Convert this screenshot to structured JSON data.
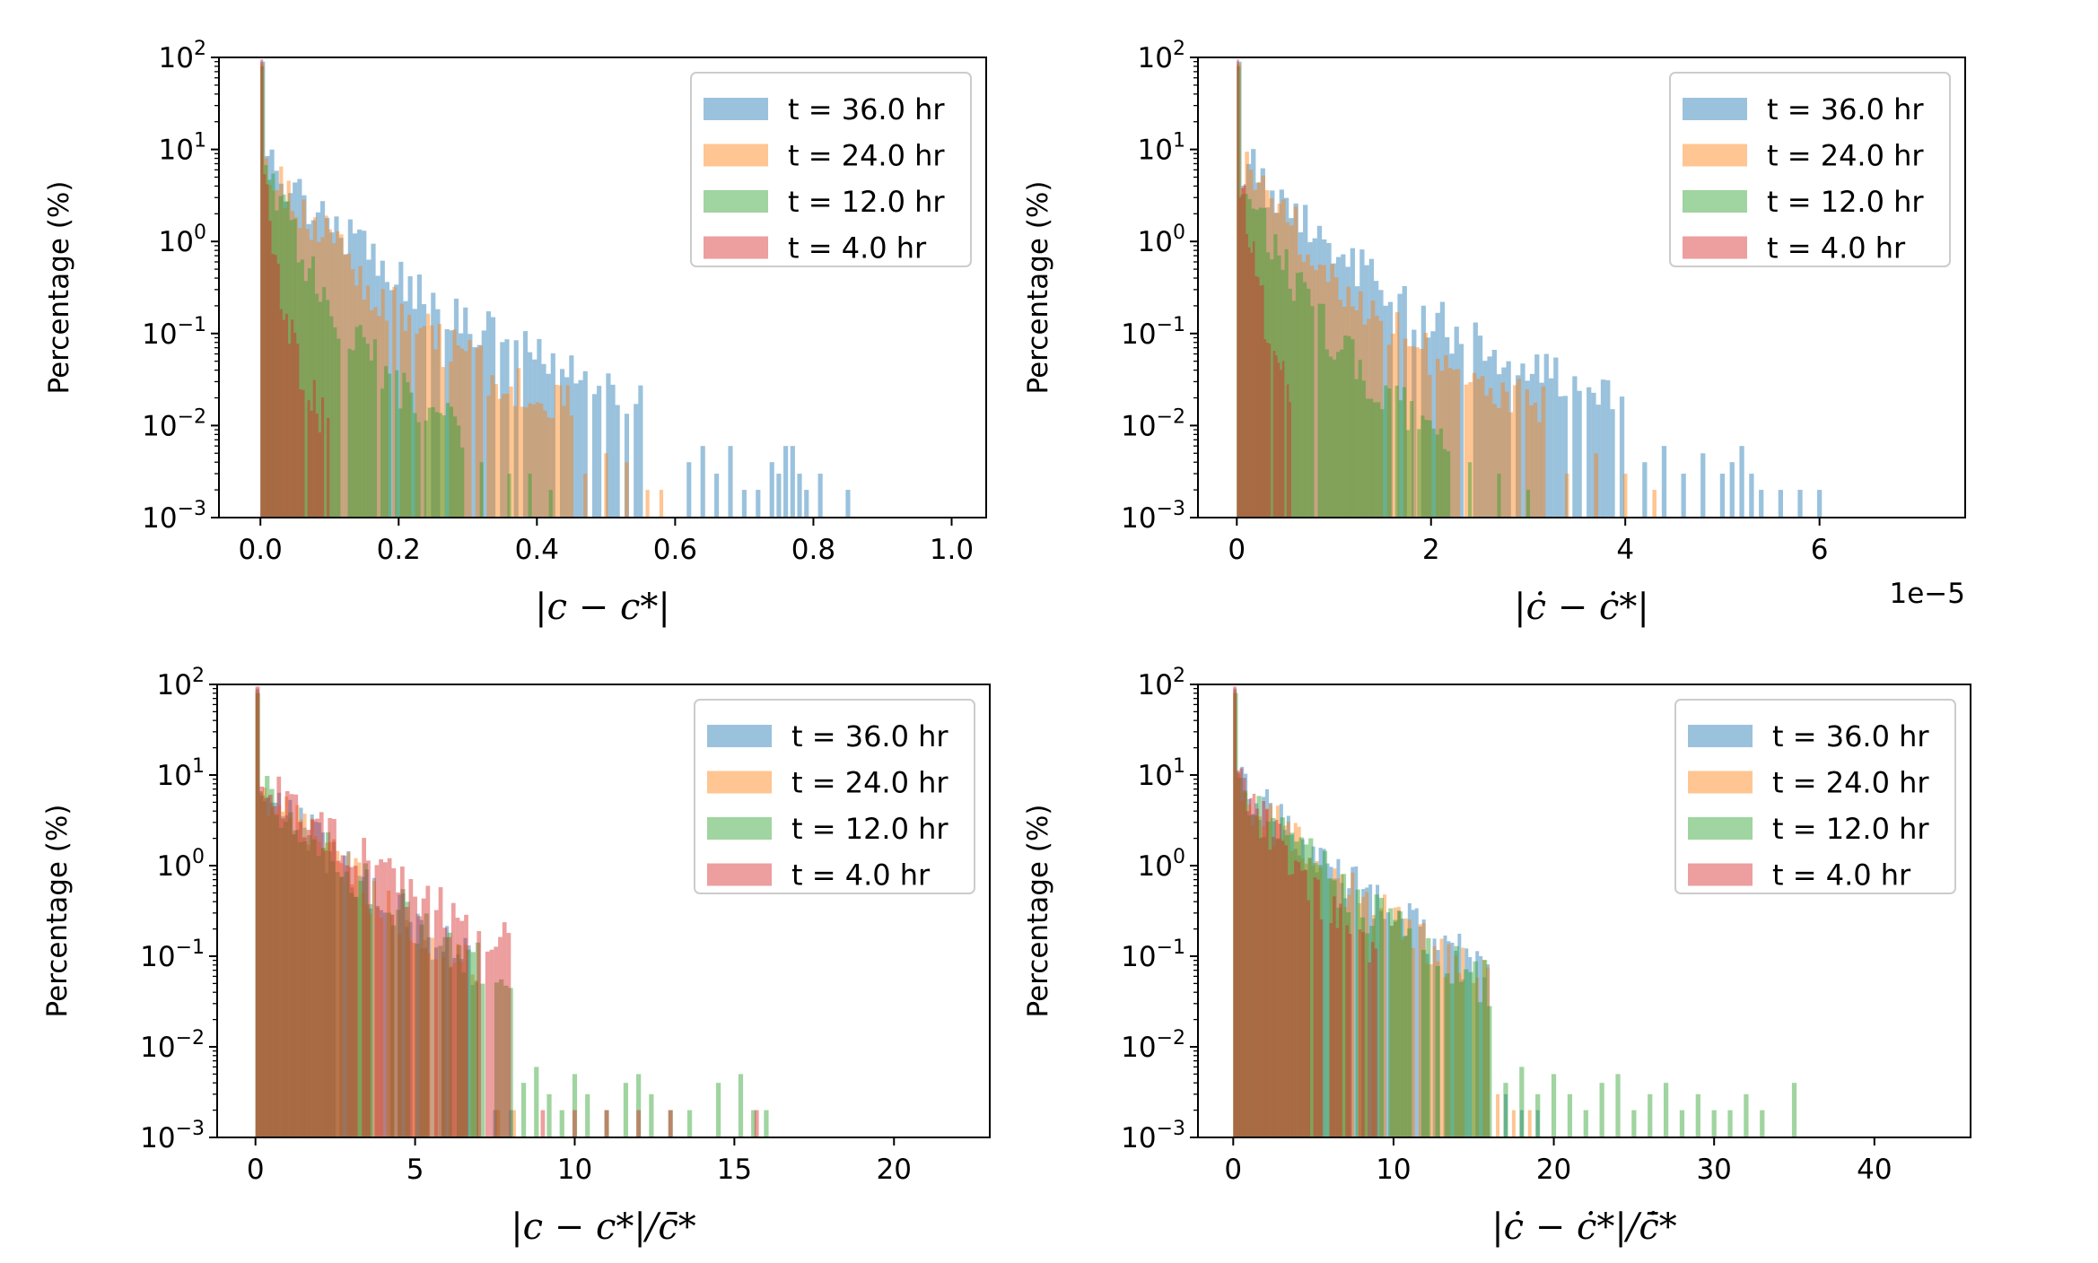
{
  "figure": {
    "colors": {
      "t36": "#1f77b4",
      "t24": "#ff7f0e",
      "t12": "#2ca02c",
      "t4": "#d62728"
    },
    "bar_alpha": 0.45
  },
  "chart_data": [
    {
      "id": "a",
      "type": "bar",
      "yscale": "log",
      "ylabel": "Percentage (%)",
      "xlabel": "|c − c*|",
      "xlim": [
        -0.06,
        1.05
      ],
      "ylim": [
        0.001,
        100
      ],
      "offset_text": "",
      "xticks": [
        0,
        0.2,
        0.4,
        0.6,
        0.8,
        1.0
      ],
      "xtick_labels": [
        "0.0",
        "0.2",
        "0.4",
        "0.6",
        "0.8",
        "1.0"
      ],
      "yticks": [
        0.001,
        0.01,
        0.1,
        1,
        10,
        100
      ],
      "legend": [
        "t = 36.0 hr",
        "t = 24.0 hr",
        "t = 12.0 hr",
        "t = 4.0 hr"
      ],
      "series": [
        {
          "name": "t = 36.0 hr",
          "color": "t36",
          "xmax": 1.0,
          "bins": 150,
          "peak": 90,
          "decay": 0.06,
          "floor_at": 0.55,
          "tail_x": [
            0.62,
            0.64,
            0.66,
            0.68,
            0.7,
            0.72,
            0.74,
            0.75,
            0.76,
            0.77,
            0.78,
            0.79,
            0.81,
            0.85,
            0.87,
            0.89,
            0.93,
            0.96,
            0.98,
            1.0
          ],
          "tail_v": [
            0.004,
            0.006,
            0.003,
            0.006,
            0.002,
            0.002,
            0.004,
            0.003,
            0.006,
            0.006,
            0.003,
            0.002,
            0.003,
            0.002,
            0.001,
            0.001,
            0.001,
            0.001,
            0.001,
            0.001
          ]
        },
        {
          "name": "t = 24.0 hr",
          "color": "t24",
          "xmax": 0.6,
          "bins": 110,
          "peak": 85,
          "decay": 0.045,
          "floor_at": 0.45,
          "tail_x": [
            0.47,
            0.5,
            0.53,
            0.56,
            0.58
          ],
          "tail_v": [
            0.003,
            0.005,
            0.004,
            0.002,
            0.002
          ]
        },
        {
          "name": "t = 12.0 hr",
          "color": "t12",
          "xmax": 0.5,
          "bins": 95,
          "peak": 80,
          "decay": 0.025,
          "floor_at": 0.3,
          "tail_x": [
            0.32,
            0.36,
            0.39,
            0.42,
            0.45,
            0.48
          ],
          "tail_v": [
            0.004,
            0.003,
            0.003,
            0.002,
            0.001,
            0.001
          ]
        },
        {
          "name": "t = 4.0 hr",
          "color": "t4",
          "xmax": 0.12,
          "bins": 30,
          "peak": 95,
          "decay": 0.008,
          "floor_at": 0.1,
          "tail_x": [],
          "tail_v": []
        }
      ]
    },
    {
      "id": "b",
      "type": "bar",
      "yscale": "log",
      "ylabel": "Percentage (%)",
      "xlabel": "|ċ − ċ*|",
      "xlim": [
        -0.4,
        7.5
      ],
      "ylim": [
        0.001,
        100
      ],
      "offset_text": "1e−5",
      "xticks": [
        0,
        2,
        4,
        6
      ],
      "xtick_labels": [
        "0",
        "2",
        "4",
        "6"
      ],
      "yticks": [
        0.001,
        0.01,
        0.1,
        1,
        10,
        100
      ],
      "legend": [
        "t = 36.0 hr",
        "t = 24.0 hr",
        "t = 12.0 hr",
        "t = 4.0 hr"
      ],
      "series": [
        {
          "name": "t = 36.0 hr",
          "color": "t36",
          "xmax": 7.3,
          "bins": 150,
          "peak": 90,
          "decay": 0.42,
          "floor_at": 4.0,
          "tail_x": [
            4.2,
            4.4,
            4.6,
            4.8,
            5.0,
            5.1,
            5.2,
            5.3,
            5.4,
            5.6,
            5.8,
            6.0,
            6.2,
            6.4,
            6.7,
            7.2
          ],
          "tail_v": [
            0.004,
            0.006,
            0.003,
            0.005,
            0.003,
            0.004,
            0.006,
            0.003,
            0.002,
            0.002,
            0.002,
            0.002,
            0.001,
            0.001,
            0.001,
            0.001
          ]
        },
        {
          "name": "t = 24.0 hr",
          "color": "t24",
          "xmax": 4.6,
          "bins": 110,
          "peak": 85,
          "decay": 0.32,
          "floor_at": 3.2,
          "tail_x": [
            3.4,
            3.7,
            4.0,
            4.3
          ],
          "tail_v": [
            0.003,
            0.005,
            0.003,
            0.002
          ]
        },
        {
          "name": "t = 12.0 hr",
          "color": "t12",
          "xmax": 3.6,
          "bins": 95,
          "peak": 80,
          "decay": 0.18,
          "floor_at": 2.2,
          "tail_x": [
            2.4,
            2.7,
            3.0,
            3.3
          ],
          "tail_v": [
            0.004,
            0.003,
            0.002,
            0.001
          ]
        },
        {
          "name": "t = 4.0 hr",
          "color": "t4",
          "xmax": 0.7,
          "bins": 30,
          "peak": 95,
          "decay": 0.06,
          "floor_at": 0.6,
          "tail_x": [],
          "tail_v": []
        }
      ]
    },
    {
      "id": "c",
      "type": "bar",
      "yscale": "log",
      "ylabel": "Percentage (%)",
      "xlabel": "|c − c*|/c̄*",
      "xlim": [
        -1.2,
        23.0
      ],
      "ylim": [
        0.001,
        100
      ],
      "offset_text": "",
      "xticks": [
        0,
        5,
        10,
        15,
        20
      ],
      "xtick_labels": [
        "0",
        "5",
        "10",
        "15",
        "20"
      ],
      "yticks": [
        0.001,
        0.01,
        0.1,
        1,
        10,
        100
      ],
      "legend": [
        "t = 36.0 hr",
        "t = 24.0 hr",
        "t = 12.0 hr",
        "t = 4.0 hr"
      ],
      "series": [
        {
          "name": "t = 36.0 hr",
          "color": "t36",
          "xmax": 8.0,
          "bins": 70,
          "peak": 90,
          "decay": 1.2,
          "floor_at": 7.0,
          "tail_x": [
            7.5,
            8.0
          ],
          "tail_v": [
            0.002,
            0.002
          ]
        },
        {
          "name": "t = 24.0 hr",
          "color": "t24",
          "xmax": 8.0,
          "bins": 70,
          "peak": 85,
          "decay": 1.2,
          "floor_at": 7.0,
          "tail_x": [
            7.6,
            8.1
          ],
          "tail_v": [
            0.002,
            0.002
          ]
        },
        {
          "name": "t = 12.0 hr",
          "color": "t12",
          "xmax": 22.0,
          "bins": 150,
          "peak": 80,
          "decay": 1.3,
          "floor_at": 8.0,
          "tail_x": [
            8.4,
            8.8,
            9.2,
            9.6,
            10.0,
            10.4,
            11.0,
            11.6,
            12.0,
            12.4,
            13.0,
            13.6,
            14.5,
            15.2,
            15.6,
            16.0,
            17.0,
            18.5,
            19.0,
            22.0
          ],
          "tail_v": [
            0.004,
            0.006,
            0.003,
            0.002,
            0.005,
            0.003,
            0.002,
            0.004,
            0.005,
            0.003,
            0.002,
            0.002,
            0.004,
            0.005,
            0.002,
            0.002,
            0.001,
            0.001,
            0.001,
            0.001
          ]
        },
        {
          "name": "t = 4.0 hr",
          "color": "t4",
          "xmax": 16.0,
          "bins": 120,
          "peak": 95,
          "decay": 1.55,
          "floor_at": 8.0,
          "tail_x": [
            9.0,
            10.0,
            11.0,
            12.0,
            13.0,
            15.7
          ],
          "tail_v": [
            0.002,
            0.002,
            0.002,
            0.002,
            0.002,
            0.002
          ]
        }
      ]
    },
    {
      "id": "d",
      "type": "bar",
      "yscale": "log",
      "ylabel": "Percentage (%)",
      "xlabel": "|ċ − ċ*|/c̄̇*",
      "xlim": [
        -2.2,
        46.0
      ],
      "ylim": [
        0.001,
        100
      ],
      "offset_text": "",
      "xticks": [
        0,
        10,
        20,
        30,
        40
      ],
      "xtick_labels": [
        "0",
        "10",
        "20",
        "30",
        "40"
      ],
      "yticks": [
        0.001,
        0.01,
        0.1,
        1,
        10,
        100
      ],
      "legend": [
        "t = 36.0 hr",
        "t = 24.0 hr",
        "t = 12.0 hr",
        "t = 4.0 hr"
      ],
      "series": [
        {
          "name": "t = 36.0 hr",
          "color": "t36",
          "xmax": 20.0,
          "bins": 90,
          "peak": 90,
          "decay": 2.6,
          "floor_at": 16.0,
          "tail_x": [
            17.0,
            18.0,
            19.0
          ],
          "tail_v": [
            0.003,
            0.002,
            0.002
          ]
        },
        {
          "name": "t = 24.0 hr",
          "color": "t24",
          "xmax": 20.0,
          "bins": 90,
          "peak": 85,
          "decay": 2.5,
          "floor_at": 16.0,
          "tail_x": [
            16.5,
            17.5,
            18.5
          ],
          "tail_v": [
            0.003,
            0.002,
            0.002
          ]
        },
        {
          "name": "t = 12.0 hr",
          "color": "t12",
          "xmax": 44.0,
          "bins": 150,
          "peak": 80,
          "decay": 2.4,
          "floor_at": 16.0,
          "tail_x": [
            17.0,
            18.0,
            19.0,
            20.0,
            21.0,
            22.0,
            23.0,
            24.0,
            25.0,
            26.0,
            27.0,
            28.0,
            29.0,
            30.0,
            31.0,
            32.0,
            33.0,
            35.0,
            40.0,
            43.5
          ],
          "tail_v": [
            0.004,
            0.006,
            0.003,
            0.005,
            0.003,
            0.002,
            0.004,
            0.005,
            0.002,
            0.003,
            0.004,
            0.002,
            0.003,
            0.002,
            0.002,
            0.003,
            0.002,
            0.004,
            0.001,
            0.001
          ]
        },
        {
          "name": "t = 4.0 hr",
          "color": "t4",
          "xmax": 10.0,
          "bins": 50,
          "peak": 95,
          "decay": 1.6,
          "floor_at": 9.0,
          "tail_x": [],
          "tail_v": []
        }
      ]
    }
  ]
}
